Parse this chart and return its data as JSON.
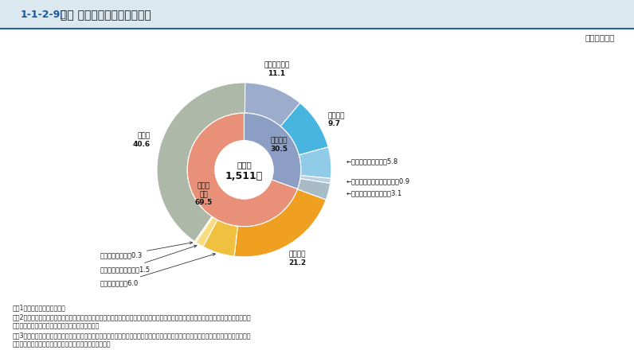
{
  "title_num": "1-1-2-9図",
  "title_text": "強盗 認知件数の手口別構成比",
  "year_label": "（令和元年）",
  "center_line1": "総　数",
  "center_line2": "1,511件",
  "inner": [
    {
      "label": "侵入強盗",
      "value": 30.5,
      "color": "#8c9ec4",
      "label_display": "侵入強盗\n30.5"
    },
    {
      "label": "非侵入強盗",
      "value": 69.5,
      "color": "#e89078",
      "label_display": "非侵入\n強盗\n69.5"
    }
  ],
  "outer": [
    {
      "label": "コンビニ強盗",
      "value": 11.1,
      "color": "#9caccc",
      "display": "コンビニ強盗\n11.1",
      "anchor": "above"
    },
    {
      "label": "住宅強盗",
      "value": 9.7,
      "color": "#48b4e0",
      "display": "住宅強盗\n9.7",
      "anchor": "right_upper"
    },
    {
      "label": "その他の店舗強盗",
      "value": 5.8,
      "color": "#90cce8",
      "display": "←その他の店舗強盗　5.8",
      "anchor": "right"
    },
    {
      "label": "金融機関強盗",
      "value": 0.9,
      "color": "#b8d0e0",
      "display": "←金　融　機　関　強　盗　0.9",
      "anchor": "right"
    },
    {
      "label": "その他",
      "value": 3.1,
      "color": "#a8bcc8",
      "display": "←そ　　　の　　　他　3.1",
      "anchor": "right"
    },
    {
      "label": "路上強盗",
      "value": 21.2,
      "color": "#f0a020",
      "display": "路上強盗\n21.2",
      "anchor": "below"
    },
    {
      "label": "タクシー強盗",
      "value": 6.0,
      "color": "#f0c040",
      "display": "タクシー強盗　6.0",
      "anchor": "lower_left"
    },
    {
      "label": "その他の自動車強盗",
      "value": 1.5,
      "color": "#f8dc80",
      "display": "その他の自動車強盗　1.5",
      "anchor": "lower_left"
    },
    {
      "label": "途中強盗",
      "value": 0.3,
      "color": "#f8eca0",
      "display": "途　中　強　盗　0.3",
      "anchor": "lower_left"
    },
    {
      "label": "その他",
      "value": 40.6,
      "color": "#adb8a8",
      "display": "その他\n40.6",
      "anchor": "left"
    }
  ],
  "notes": [
    "注　1　警察庁の統計による。",
    "　　2　「タクシー強盗」及び「その他の自動車強盗」は，自動車に乗車中の者から自動車又は金品を強取するもの（暴行・脅迫を加えて運",
    "　　　　賞の支払を免れるものを含む。）をいう。",
    "　　3　「途中強盗」は，金品を輸送中の者又は銀行等に預金に行く途中若しくは銀行等から払戛しを受けて帰る途中の者であることを知っ",
    "　　　　た上で，その者から金品を強取するものをいう。"
  ],
  "bg_color": "#ffffff",
  "header_bg": "#dce8f0",
  "header_accent_color": "#1558a0",
  "title_color": "#1558a0",
  "text_color": "#1a1a1a"
}
